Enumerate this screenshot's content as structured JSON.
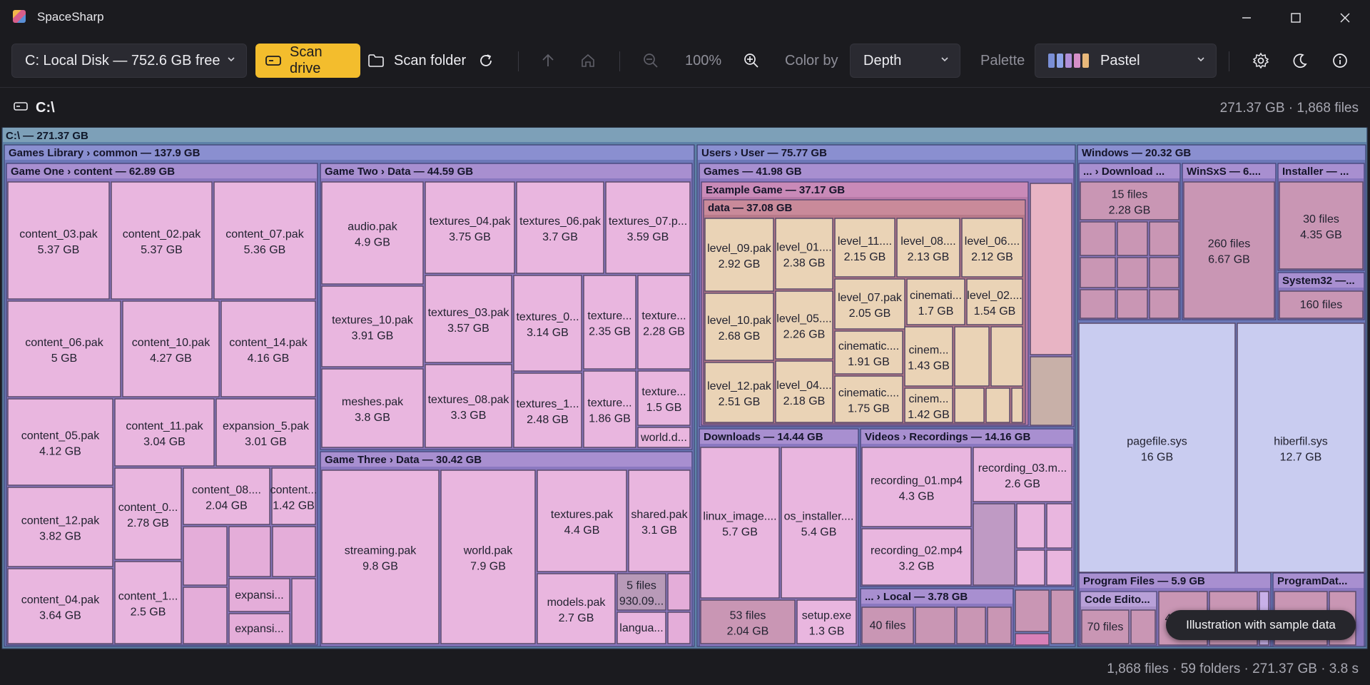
{
  "app": {
    "title": "SpaceSharp"
  },
  "toolbar": {
    "drive_select": "C: Local Disk — 752.6 GB free",
    "scan_drive": "Scan drive",
    "scan_folder": "Scan folder",
    "zoom": "100%",
    "color_by_label": "Color by",
    "color_by_value": "Depth",
    "palette_label": "Palette",
    "palette_value": "Pastel",
    "palette_swatches": [
      "#7a8fd6",
      "#8ea4e8",
      "#b08fd8",
      "#d68fc8",
      "#e8b87a"
    ]
  },
  "path": {
    "current": "C:\\",
    "stats": "271.37 GB · 1,868 files"
  },
  "treemap": {
    "root": "C:\\  —  271.37 GB",
    "groups": [
      {
        "id": "games-library",
        "title": "Games Library  ›  common  —  137.9 GB"
      },
      {
        "id": "game-one",
        "title": "Game One  ›  content  —  62.89 GB"
      },
      {
        "id": "game-two",
        "title": "Game Two  ›  Data  —  44.59 GB"
      },
      {
        "id": "game-three",
        "title": "Game Three  ›  Data  —  30.42 GB"
      },
      {
        "id": "users",
        "title": "Users  ›  User  —  75.77 GB"
      },
      {
        "id": "user-games",
        "title": "Games  —  41.98 GB"
      },
      {
        "id": "example-game",
        "title": "Example Game  —  37.17 GB"
      },
      {
        "id": "example-data",
        "title": "data  —  37.08 GB"
      },
      {
        "id": "downloads",
        "title": "Downloads  —  14.44 GB"
      },
      {
        "id": "videos",
        "title": "Videos  ›  Recordings  —  14.16 GB"
      },
      {
        "id": "local",
        "title": "...  ›  Local  —  3.78 GB"
      },
      {
        "id": "windows",
        "title": "Windows  —  20.32 GB"
      },
      {
        "id": "win-download",
        "title": "...  ›  Download ..."
      },
      {
        "id": "winsxs",
        "title": "WinSxS  —  6...."
      },
      {
        "id": "installer",
        "title": "Installer  —  ..."
      },
      {
        "id": "system32",
        "title": "System32  —..."
      },
      {
        "id": "program-files",
        "title": "Program Files  —  5.9 GB"
      },
      {
        "id": "program-data",
        "title": "ProgramDat..."
      },
      {
        "id": "code-editor",
        "title": "Code Edito..."
      }
    ],
    "files": {
      "content_03": {
        "name": "content_03.pak",
        "size": "5.37 GB"
      },
      "content_02": {
        "name": "content_02.pak",
        "size": "5.37 GB"
      },
      "content_07": {
        "name": "content_07.pak",
        "size": "5.36 GB"
      },
      "content_06": {
        "name": "content_06.pak",
        "size": "5 GB"
      },
      "content_10": {
        "name": "content_10.pak",
        "size": "4.27 GB"
      },
      "content_14": {
        "name": "content_14.pak",
        "size": "4.16 GB"
      },
      "content_05": {
        "name": "content_05.pak",
        "size": "4.12 GB"
      },
      "content_11": {
        "name": "content_11.pak",
        "size": "3.04 GB"
      },
      "expansion_5": {
        "name": "expansion_5.pak",
        "size": "3.01 GB"
      },
      "content_12": {
        "name": "content_12.pak",
        "size": "3.82 GB"
      },
      "content_0x": {
        "name": "content_0...",
        "size": "2.78 GB"
      },
      "content_08": {
        "name": "content_08....",
        "size": "2.04 GB"
      },
      "content_xx": {
        "name": "content...",
        "size": "1.42 GB"
      },
      "content_04": {
        "name": "content_04.pak",
        "size": "3.64 GB"
      },
      "content_1x": {
        "name": "content_1...",
        "size": "2.5 GB"
      },
      "expansi_a": {
        "name": "expansi...",
        "size": ""
      },
      "expansi_b": {
        "name": "expansi...",
        "size": ""
      },
      "audio": {
        "name": "audio.pak",
        "size": "4.9 GB"
      },
      "textures_04": {
        "name": "textures_04.pak",
        "size": "3.75 GB"
      },
      "textures_06": {
        "name": "textures_06.pak",
        "size": "3.7 GB"
      },
      "textures_07": {
        "name": "textures_07.p...",
        "size": "3.59 GB"
      },
      "textures_10": {
        "name": "textures_10.pak",
        "size": "3.91 GB"
      },
      "textures_03": {
        "name": "textures_03.pak",
        "size": "3.57 GB"
      },
      "textures_0x": {
        "name": "textures_0...",
        "size": "3.14 GB"
      },
      "texture_a": {
        "name": "texture...",
        "size": "2.35 GB"
      },
      "texture_b": {
        "name": "texture...",
        "size": "2.28 GB"
      },
      "meshes": {
        "name": "meshes.pak",
        "size": "3.8 GB"
      },
      "textures_08": {
        "name": "textures_08.pak",
        "size": "3.3 GB"
      },
      "textures_1x": {
        "name": "textures_1...",
        "size": "2.48 GB"
      },
      "texture_c": {
        "name": "texture...",
        "size": "1.86 GB"
      },
      "texture_d": {
        "name": "texture...",
        "size": "1.5 GB"
      },
      "world_d": {
        "name": "world.d...",
        "size": ""
      },
      "streaming": {
        "name": "streaming.pak",
        "size": "9.8 GB"
      },
      "world": {
        "name": "world.pak",
        "size": "7.9 GB"
      },
      "textures": {
        "name": "textures.pak",
        "size": "4.4 GB"
      },
      "shared": {
        "name": "shared.pak",
        "size": "3.1 GB"
      },
      "models": {
        "name": "models.pak",
        "size": "2.7 GB"
      },
      "five_files": {
        "name": "5 files",
        "size": "930.09..."
      },
      "langua": {
        "name": "langua...",
        "size": ""
      },
      "level_09": {
        "name": "level_09.pak",
        "size": "2.92 GB"
      },
      "level_01": {
        "name": "level_01....",
        "size": "2.38 GB"
      },
      "level_11": {
        "name": "level_11....",
        "size": "2.15 GB"
      },
      "level_08": {
        "name": "level_08....",
        "size": "2.13 GB"
      },
      "level_06": {
        "name": "level_06....",
        "size": "2.12 GB"
      },
      "level_10": {
        "name": "level_10.pak",
        "size": "2.68 GB"
      },
      "level_05": {
        "name": "level_05....",
        "size": "2.26 GB"
      },
      "level_07": {
        "name": "level_07.pak",
        "size": "2.05 GB"
      },
      "cinemati_a": {
        "name": "cinemati...",
        "size": "1.7 GB"
      },
      "level_02": {
        "name": "level_02....",
        "size": "1.54 GB"
      },
      "cinematic_b": {
        "name": "cinematic....",
        "size": "1.91 GB"
      },
      "cinem_c": {
        "name": "cinem...",
        "size": "1.43 GB"
      },
      "level_12": {
        "name": "level_12.pak",
        "size": "2.51 GB"
      },
      "level_04": {
        "name": "level_04....",
        "size": "2.18 GB"
      },
      "cinematic_d": {
        "name": "cinematic....",
        "size": "1.75 GB"
      },
      "cinem_e": {
        "name": "cinem...",
        "size": "1.42 GB"
      },
      "linux_image": {
        "name": "linux_image....",
        "size": "5.7 GB"
      },
      "os_installer": {
        "name": "os_installer....",
        "size": "5.4 GB"
      },
      "dl_53": {
        "name": "53 files",
        "size": "2.04 GB"
      },
      "setup": {
        "name": "setup.exe",
        "size": "1.3 GB"
      },
      "rec_01": {
        "name": "recording_01.mp4",
        "size": "4.3 GB"
      },
      "rec_03": {
        "name": "recording_03.m...",
        "size": "2.6 GB"
      },
      "rec_02": {
        "name": "recording_02.mp4",
        "size": "3.2 GB"
      },
      "local_40": {
        "name": "40 files",
        "size": ""
      },
      "win_15": {
        "name": "15 files",
        "size": "2.28 GB"
      },
      "winsxs_260": {
        "name": "260 files",
        "size": "6.67 GB"
      },
      "inst_30": {
        "name": "30 files",
        "size": "4.35 GB"
      },
      "sys32_160": {
        "name": "160 files",
        "size": ""
      },
      "pagefile": {
        "name": "pagefile.sys",
        "size": "16 GB"
      },
      "hiberfil": {
        "name": "hiberfil.sys",
        "size": "12.7 GB"
      },
      "ce_70": {
        "name": "70 files",
        "size": ""
      },
      "pf_40": {
        "name": "40 files",
        "size": ""
      },
      "pd_40": {
        "name": "40 files",
        "size": ""
      }
    }
  },
  "status": {
    "text": "1,868 files · 59 folders · 271.37 GB · 3.8 s"
  },
  "tooltip": {
    "text": "Illustration with sample data"
  }
}
